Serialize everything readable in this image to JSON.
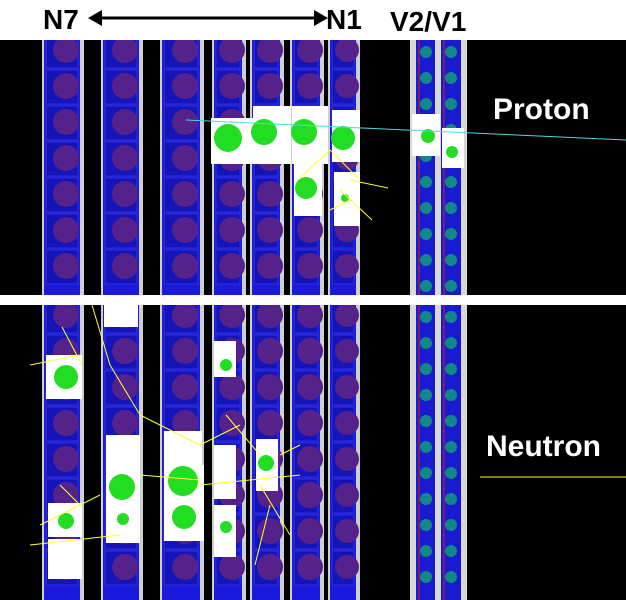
{
  "header": {
    "left_label": "N7",
    "right_label": "N1",
    "veto_label": "V2/V1"
  },
  "panels": [
    {
      "label": "Proton"
    },
    {
      "label": "Neutron"
    }
  ],
  "colors": {
    "background": "#000000",
    "scintillator": "#1a1adc",
    "cell": "#55228c",
    "hit": "#22dd22",
    "track": "#ffff33",
    "beam": "#44dddd",
    "veto_dot": "#118888"
  }
}
